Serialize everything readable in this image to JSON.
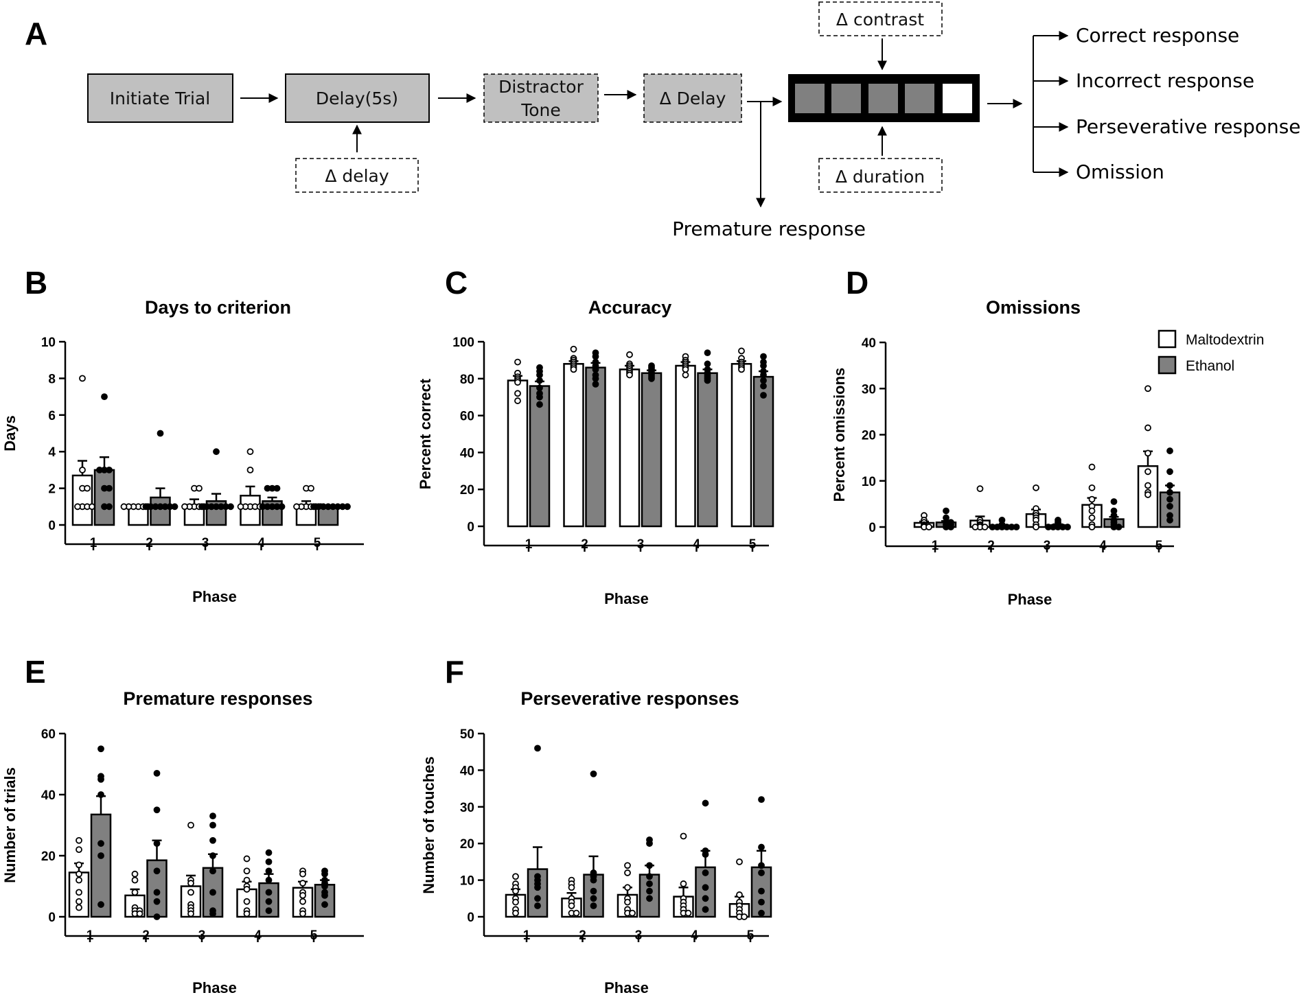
{
  "panel_labels": {
    "a": "A",
    "b": "B",
    "c": "C",
    "d": "D",
    "e": "E",
    "f": "F"
  },
  "flow": {
    "initiate": "Initiate Trial",
    "delay": "Delay(5s)",
    "delta_delay_small": "Δ delay",
    "distractor_line1": "Distractor",
    "distractor_line2": "Tone",
    "delta_delay": "Δ Delay",
    "delta_contrast": "Δ contrast",
    "delta_duration": "Δ duration",
    "premature": "Premature response",
    "outcomes": [
      "Correct response",
      "Incorrect response",
      "Perseverative response",
      "Omission"
    ]
  },
  "colors": {
    "maltodextrin": "#ffffff",
    "ethanol": "#808080",
    "grey_box": "#c0c0c0",
    "screen_cell": "#808080"
  },
  "legend": {
    "maltodextrin": "Maltodextrin",
    "ethanol": "Ethanol"
  },
  "chart_data": [
    {
      "id": "B",
      "type": "bar",
      "title": "Days to criterion",
      "xlabel": "Phase",
      "ylabel": "Days",
      "categories": [
        "1",
        "2",
        "3",
        "4",
        "5"
      ],
      "ylim": [
        0,
        10
      ],
      "yticks": [
        0,
        2,
        4,
        6,
        8,
        10
      ],
      "series": [
        {
          "name": "Maltodextrin",
          "values": [
            2.7,
            1.0,
            1.1,
            1.6,
            1.1
          ],
          "sem": [
            0.8,
            0.0,
            0.3,
            0.5,
            0.2
          ],
          "points": [
            [
              8,
              3,
              2,
              2,
              1,
              1,
              1,
              1
            ],
            [
              1,
              1,
              1,
              1,
              1,
              1,
              1,
              1
            ],
            [
              2,
              2,
              1,
              1,
              1,
              1,
              1,
              1
            ],
            [
              4,
              3,
              1,
              1,
              1,
              1,
              1,
              1
            ],
            [
              2,
              2,
              1,
              1,
              1,
              1,
              1,
              1
            ]
          ]
        },
        {
          "name": "Ethanol",
          "values": [
            3.0,
            1.5,
            1.3,
            1.3,
            1.0
          ],
          "sem": [
            0.7,
            0.5,
            0.4,
            0.2,
            0.0
          ],
          "points": [
            [
              7,
              3,
              3,
              3,
              2,
              2,
              1,
              1
            ],
            [
              5,
              1,
              1,
              1,
              1,
              1,
              1,
              1
            ],
            [
              4,
              1,
              1,
              1,
              1,
              1,
              1,
              1
            ],
            [
              2,
              2,
              2,
              1,
              1,
              1,
              1,
              1
            ],
            [
              1,
              1,
              1,
              1,
              1,
              1,
              1,
              1
            ]
          ]
        }
      ]
    },
    {
      "id": "C",
      "type": "bar",
      "title": "Accuracy",
      "xlabel": "Phase",
      "ylabel": "Percent correct",
      "categories": [
        "1",
        "2",
        "3",
        "4",
        "5"
      ],
      "ylim": [
        0,
        100
      ],
      "yticks": [
        0,
        20,
        40,
        60,
        80,
        100
      ],
      "series": [
        {
          "name": "Maltodextrin",
          "values": [
            79,
            88,
            85,
            87,
            88
          ],
          "sem": [
            2.5,
            1.5,
            2.0,
            2.0,
            1.5
          ],
          "points": [
            [
              89,
              83,
              81,
              80,
              79,
              78,
              72,
              68
            ],
            [
              96,
              91,
              90,
              89,
              88,
              87,
              86,
              85
            ],
            [
              93,
              88,
              87,
              86,
              85,
              84,
              83,
              82
            ],
            [
              92,
              90,
              89,
              88,
              87,
              86,
              85,
              82
            ],
            [
              95,
              91,
              89,
              88,
              87,
              86,
              85
            ]
          ]
        },
        {
          "name": "Ethanol",
          "values": [
            76,
            86,
            83,
            83,
            81
          ],
          "sem": [
            2.5,
            2.5,
            1.5,
            2.0,
            3.0
          ],
          "points": [
            [
              86,
              84,
              82,
              79,
              75,
              72,
              70,
              66
            ],
            [
              94,
              92,
              89,
              87,
              85,
              82,
              80,
              77
            ],
            [
              87,
              86,
              85,
              84,
              83,
              82,
              81,
              80
            ],
            [
              94,
              88,
              85,
              83,
              82,
              81,
              80,
              79
            ],
            [
              92,
              89,
              87,
              84,
              82,
              79,
              76,
              71
            ]
          ]
        }
      ]
    },
    {
      "id": "D",
      "type": "bar",
      "title": "Omissions",
      "xlabel": "Phase",
      "ylabel": "Percent omissions",
      "categories": [
        "1",
        "2",
        "3",
        "4",
        "5"
      ],
      "ylim": [
        0,
        40
      ],
      "yticks": [
        0,
        10,
        20,
        30,
        40
      ],
      "series": [
        {
          "name": "Maltodextrin",
          "values": [
            0.9,
            1.4,
            2.8,
            4.8,
            13.2
          ],
          "sem": [
            0.3,
            0.9,
            1.0,
            1.5,
            3.2
          ],
          "points": [
            [
              2.5,
              1.5,
              1.0,
              0.5,
              0.3,
              0.2,
              0.0,
              0.0
            ],
            [
              8.3,
              1.5,
              1.0,
              0.5,
              0.3,
              0.0,
              0.0,
              0.0
            ],
            [
              8.5,
              4.0,
              3.0,
              2.5,
              2.0,
              1.5,
              0.5,
              0.0
            ],
            [
              13.0,
              8.5,
              6.0,
              4.5,
              3.5,
              2.0,
              0.5,
              0.0
            ],
            [
              30.0,
              21.5,
              16.0,
              12.0,
              9.0,
              7.5,
              7.0
            ]
          ]
        },
        {
          "name": "Ethanol",
          "values": [
            1.0,
            0.3,
            0.4,
            1.7,
            7.5
          ],
          "sem": [
            0.3,
            0.2,
            0.2,
            0.5,
            1.5
          ],
          "points": [
            [
              3.5,
              2.0,
              1.0,
              1.0,
              0.5,
              0.5,
              0.0,
              0.0
            ],
            [
              1.5,
              0.5,
              0.0,
              0.0,
              0.0,
              0.0,
              0.0,
              0.0
            ],
            [
              1.5,
              1.0,
              0.5,
              0.0,
              0.0,
              0.0,
              0.0,
              0.0
            ],
            [
              5.5,
              3.5,
              2.5,
              1.5,
              1.0,
              0.5,
              0.0,
              0.0
            ],
            [
              16.5,
              12.0,
              9.0,
              7.5,
              6.0,
              4.5,
              2.5,
              1.5
            ]
          ]
        }
      ],
      "legend": true
    },
    {
      "id": "E",
      "type": "bar",
      "title": "Premature responses",
      "xlabel": "Phase",
      "ylabel": "Number of trials",
      "categories": [
        "1",
        "2",
        "3",
        "4",
        "5"
      ],
      "ylim": [
        0,
        60
      ],
      "yticks": [
        0,
        20,
        40,
        60
      ],
      "series": [
        {
          "name": "Maltodextrin",
          "values": [
            14.5,
            7.0,
            10.0,
            9.0,
            9.5
          ],
          "sem": [
            3.0,
            2.0,
            3.5,
            2.5,
            2.0
          ],
          "points": [
            [
              25,
              22,
              17,
              14,
              12,
              8,
              5,
              3
            ],
            [
              14,
              12,
              8,
              3,
              2,
              2,
              1,
              1
            ],
            [
              30,
              12,
              11,
              8,
              4,
              3,
              2,
              1
            ],
            [
              19,
              15,
              12,
              10,
              9,
              5,
              2,
              1
            ],
            [
              15,
              14,
              11,
              8,
              7,
              5,
              2,
              1
            ]
          ]
        },
        {
          "name": "Ethanol",
          "values": [
            33.5,
            18.5,
            16.0,
            11.0,
            10.5
          ],
          "sem": [
            6.0,
            6.5,
            4.5,
            3.0,
            1.5
          ],
          "points": [
            [
              55,
              46,
              45,
              40,
              24,
              20,
              4
            ],
            [
              47,
              35,
              24,
              15,
              8,
              5,
              0
            ],
            [
              33,
              30,
              25,
              20,
              15,
              8,
              2,
              1
            ],
            [
              21,
              18,
              15,
              12,
              8,
              5,
              2
            ],
            [
              15,
              14,
              12,
              11,
              10,
              8,
              7,
              4
            ]
          ]
        }
      ]
    },
    {
      "id": "F",
      "type": "bar",
      "title": "Perseverative responses",
      "xlabel": "Phase",
      "ylabel": "Number of touches",
      "categories": [
        "1",
        "2",
        "3",
        "4",
        "5"
      ],
      "ylim": [
        0,
        50
      ],
      "yticks": [
        0,
        10,
        20,
        30,
        40,
        50
      ],
      "series": [
        {
          "name": "Maltodextrin",
          "values": [
            6.0,
            5.0,
            6.0,
            5.5,
            3.5
          ],
          "sem": [
            1.5,
            1.5,
            2.0,
            2.5,
            2.0
          ],
          "points": [
            [
              11,
              9,
              8,
              7,
              5,
              4,
              2,
              1
            ],
            [
              10,
              9,
              8,
              5,
              4,
              3,
              1,
              1
            ],
            [
              14,
              12,
              8,
              5,
              4,
              2,
              1,
              1
            ],
            [
              22,
              9,
              5,
              4,
              3,
              2,
              1,
              1
            ],
            [
              15,
              6,
              4,
              3,
              2,
              1,
              0,
              0
            ]
          ]
        },
        {
          "name": "Ethanol",
          "values": [
            13.0,
            11.5,
            11.5,
            13.5,
            13.5
          ],
          "sem": [
            6.0,
            5.0,
            2.5,
            4.5,
            4.5
          ],
          "points": [
            [
              46,
              11,
              10,
              9,
              8,
              5,
              3
            ],
            [
              39,
              12,
              11,
              10,
              7,
              5,
              3
            ],
            [
              21,
              20,
              14,
              11,
              9,
              7,
              5
            ],
            [
              31,
              18,
              17,
              12,
              8,
              5,
              2
            ],
            [
              32,
              19,
              14,
              12,
              7,
              4,
              1
            ]
          ]
        }
      ]
    }
  ]
}
